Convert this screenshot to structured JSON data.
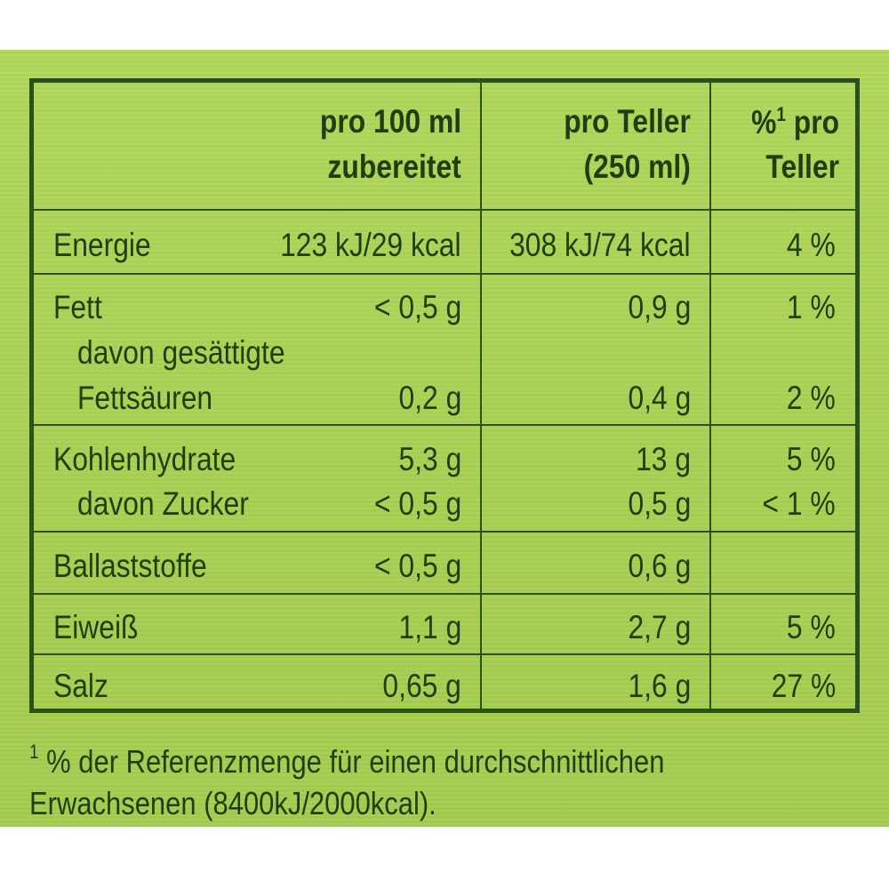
{
  "headers": {
    "col1_line1": "pro 100 ml",
    "col1_line2": "zubereitet",
    "col2_line1": "pro Teller",
    "col2_line2": "(250 ml)",
    "col3_pct": "%",
    "col3_sup": "1",
    "col3_rest": " pro",
    "col3_line2": "Teller"
  },
  "rows": {
    "energie": {
      "label": "Energie",
      "per100": "123 kJ/29 kcal",
      "perPlate": "308 kJ/74 kcal",
      "pct": "4 %"
    },
    "fett": {
      "label": "Fett",
      "per100": "< 0,5 g",
      "perPlate": "0,9 g",
      "pct": "1 %"
    },
    "fettsaeuren": {
      "label1": "davon gesättigte",
      "label2": "Fettsäuren",
      "per100": "0,2 g",
      "perPlate": "0,4 g",
      "pct": "2 %"
    },
    "kohlenhydrate": {
      "label": "Kohlenhydrate",
      "per100": "5,3 g",
      "perPlate": "13 g",
      "pct": "5 %"
    },
    "zucker": {
      "label": "davon Zucker",
      "per100": "< 0,5 g",
      "perPlate": "0,5 g",
      "pct": "< 1 %"
    },
    "ballaststoffe": {
      "label": "Ballaststoffe",
      "per100": "< 0,5 g",
      "perPlate": "0,6 g"
    },
    "eiweiss": {
      "label": "Eiweiß",
      "per100": "1,1 g",
      "perPlate": "2,7 g",
      "pct": "5 %"
    },
    "salz": {
      "label": "Salz",
      "per100": "0,65 g",
      "perPlate": "1,6 g",
      "pct": "27 %"
    }
  },
  "footnote": {
    "marker": "1",
    "line1": " % der Referenzmenge für einen durchschnittlichen",
    "line2": "Erwachsenen (8400kJ/2000kcal)."
  },
  "colors": {
    "background": "#a9d052",
    "ink": "#1f3f12",
    "rule": "#2a5218"
  }
}
